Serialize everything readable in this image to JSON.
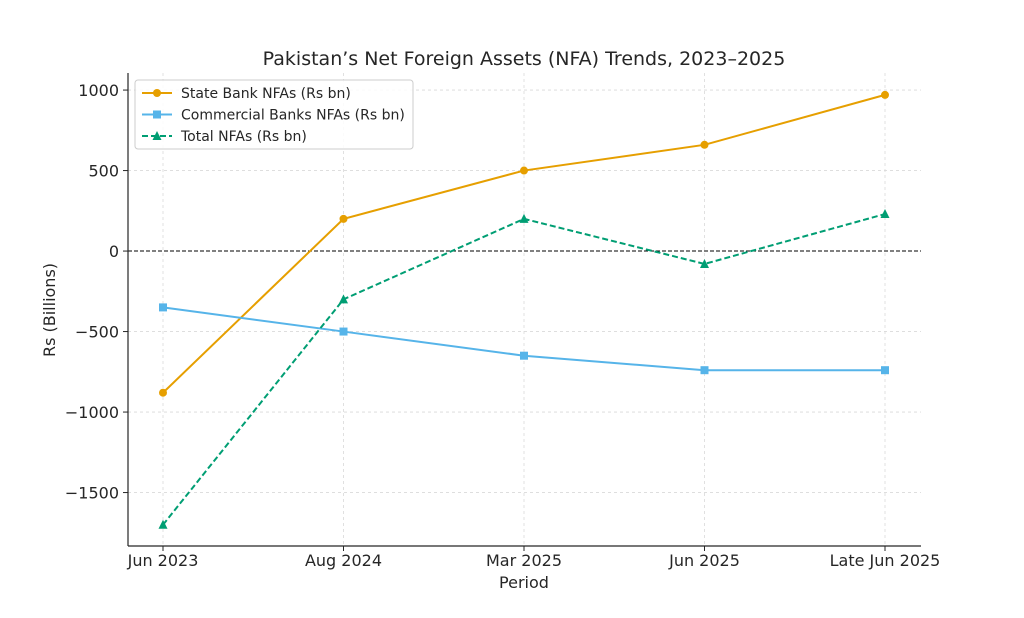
{
  "chart_data": {
    "type": "line",
    "title": "Pakistan’s Net Foreign Assets (NFA) Trends, 2023–2025",
    "xlabel": "Period",
    "ylabel": "Rs (Billions)",
    "categories": [
      "Jun 2023",
      "Aug 2024",
      "Mar 2025",
      "Jun 2025",
      "Late Jun 2025"
    ],
    "ylim": [
      -1832,
      1106
    ],
    "yticks": [
      -1500,
      -1000,
      -500,
      0,
      500,
      1000
    ],
    "grid": true,
    "legend_position": "top-left",
    "reference_line": 0,
    "series": [
      {
        "name": "State Bank NFAs (Rs bn)",
        "color": "#E69F00",
        "marker": "circle",
        "dash": false,
        "values": [
          -880,
          200,
          500,
          660,
          970
        ]
      },
      {
        "name": "Commercial Banks NFAs (Rs bn)",
        "color": "#56B4E9",
        "marker": "square",
        "dash": false,
        "values": [
          -350,
          -500,
          -650,
          -740,
          -740
        ]
      },
      {
        "name": "Total NFAs (Rs bn)",
        "color": "#009E73",
        "marker": "triangle",
        "dash": true,
        "values": [
          -1700,
          -300,
          200,
          -80,
          230
        ]
      }
    ]
  }
}
